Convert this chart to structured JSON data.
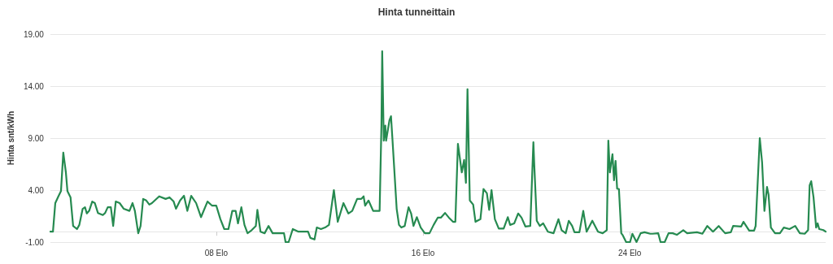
{
  "chart_data": {
    "type": "line",
    "title": "Hinta tunneittain",
    "ylabel": "Hinta snt/kWh",
    "xlim": [
      1.58,
      31.58
    ],
    "xticks": [
      {
        "value": 8,
        "label": "08 Elo"
      },
      {
        "value": 16,
        "label": "16 Elo"
      },
      {
        "value": 24,
        "label": "24 Elo"
      }
    ],
    "ylim": [
      -1,
      19
    ],
    "yticks": [
      {
        "value": -1,
        "label": "-1.00"
      },
      {
        "value": 4,
        "label": "4.00"
      },
      {
        "value": 9,
        "label": "9.00"
      },
      {
        "value": 14,
        "label": "14.00"
      },
      {
        "value": 19,
        "label": "19.00"
      }
    ],
    "grid": "y",
    "marker": "none",
    "line_style": "solid",
    "series": [
      {
        "color": "#268a50",
        "x": [
          1.58,
          1.68,
          1.77,
          1.89,
          1.99,
          2.08,
          2.18,
          2.24,
          2.36,
          2.46,
          2.61,
          2.7,
          2.83,
          2.92,
          2.99,
          3.08,
          3.2,
          3.3,
          3.42,
          3.61,
          3.7,
          3.8,
          3.92,
          4.01,
          4.11,
          4.26,
          4.42,
          4.64,
          4.76,
          4.85,
          4.98,
          5.07,
          5.17,
          5.29,
          5.41,
          5.51,
          5.79,
          6.04,
          6.19,
          6.35,
          6.44,
          6.6,
          6.75,
          6.88,
          7.03,
          7.22,
          7.41,
          7.66,
          7.84,
          8.0,
          8.16,
          8.31,
          8.47,
          8.62,
          8.75,
          8.84,
          8.97,
          9.09,
          9.21,
          9.37,
          9.53,
          9.59,
          9.71,
          9.87,
          10.02,
          10.18,
          10.46,
          10.62,
          10.68,
          10.8,
          10.96,
          11.18,
          11.55,
          11.64,
          11.8,
          11.89,
          12.05,
          12.21,
          12.36,
          12.55,
          12.7,
          12.92,
          13.11,
          13.26,
          13.45,
          13.61,
          13.7,
          13.76,
          13.89,
          14.07,
          14.23,
          14.32,
          14.39,
          14.42,
          14.48,
          14.54,
          14.57,
          14.7,
          14.76,
          14.82,
          14.98,
          15.07,
          15.16,
          15.29,
          15.44,
          15.54,
          15.63,
          15.76,
          15.91,
          16.07,
          16.25,
          16.41,
          16.57,
          16.69,
          16.85,
          17.0,
          17.16,
          17.25,
          17.35,
          17.5,
          17.59,
          17.66,
          17.72,
          17.81,
          17.94,
          18.03,
          18.22,
          18.34,
          18.47,
          18.56,
          18.65,
          18.78,
          18.93,
          19.12,
          19.28,
          19.37,
          19.53,
          19.68,
          19.81,
          19.96,
          20.15,
          20.27,
          20.3,
          20.4,
          20.52,
          20.65,
          20.83,
          21.05,
          21.24,
          21.36,
          21.52,
          21.64,
          21.77,
          21.86,
          22.05,
          22.2,
          22.33,
          22.55,
          22.77,
          22.95,
          23.11,
          23.17,
          23.23,
          23.33,
          23.39,
          23.45,
          23.51,
          23.58,
          23.67,
          23.73,
          23.86,
          24.01,
          24.1,
          24.26,
          24.42,
          24.57,
          24.79,
          24.88,
          25.1,
          25.19,
          25.35,
          25.5,
          25.66,
          25.82,
          26.07,
          26.22,
          26.6,
          26.81,
          27.0,
          27.22,
          27.44,
          27.69,
          27.91,
          28.0,
          28.31,
          28.4,
          28.62,
          28.81,
          28.87,
          29.03,
          29.12,
          29.21,
          29.31,
          29.37,
          29.46,
          29.62,
          29.81,
          29.96,
          30.18,
          30.4,
          30.58,
          30.77,
          30.9,
          30.96,
          31.02,
          31.11,
          31.21,
          31.27,
          31.33,
          31.49,
          31.58
        ],
        "values": [
          0.0,
          0.0,
          2.75,
          3.4,
          3.9,
          7.6,
          5.7,
          3.9,
          3.3,
          0.55,
          0.25,
          0.65,
          2.2,
          2.35,
          1.75,
          2.0,
          2.9,
          2.75,
          1.8,
          1.6,
          1.8,
          2.35,
          2.35,
          0.55,
          2.9,
          2.75,
          2.2,
          2.0,
          2.75,
          2.0,
          -0.15,
          0.55,
          3.15,
          3.0,
          2.6,
          2.75,
          3.4,
          3.15,
          3.3,
          2.9,
          2.2,
          3.0,
          3.45,
          2.0,
          3.45,
          2.75,
          1.4,
          2.9,
          2.5,
          2.5,
          1.2,
          0.25,
          0.25,
          2.0,
          2.0,
          0.8,
          2.35,
          0.65,
          -0.15,
          0.15,
          0.55,
          2.1,
          0.0,
          -0.15,
          0.55,
          -0.15,
          -0.15,
          -0.15,
          -1.0,
          -1.0,
          0.25,
          0.0,
          0.0,
          -0.6,
          -0.75,
          0.4,
          0.25,
          0.4,
          0.65,
          4.0,
          0.95,
          2.75,
          1.75,
          2.0,
          3.15,
          3.15,
          3.4,
          2.5,
          3.0,
          2.0,
          2.0,
          2.0,
          10.2,
          17.35,
          8.75,
          10.2,
          8.75,
          10.7,
          11.1,
          8.75,
          2.2,
          0.65,
          0.4,
          0.55,
          2.35,
          1.75,
          0.55,
          1.4,
          0.4,
          -0.15,
          -0.15,
          0.65,
          1.35,
          1.35,
          1.8,
          1.35,
          0.95,
          0.95,
          8.45,
          5.7,
          6.9,
          4.7,
          13.7,
          3.0,
          2.6,
          0.95,
          1.2,
          4.1,
          3.7,
          2.1,
          4.0,
          1.2,
          0.3,
          0.3,
          1.4,
          0.65,
          0.8,
          1.75,
          1.35,
          0.5,
          0.55,
          8.6,
          6.65,
          1.05,
          0.55,
          0.8,
          0.0,
          -0.15,
          1.2,
          0.15,
          -0.15,
          1.05,
          0.55,
          -0.05,
          -0.05,
          2.0,
          0.0,
          1.05,
          0.0,
          -0.15,
          0.15,
          8.75,
          5.7,
          7.45,
          4.95,
          6.8,
          4.15,
          4.1,
          -0.15,
          -0.35,
          -1.0,
          -1.0,
          -0.2,
          -1.0,
          -0.15,
          -0.05,
          -0.2,
          -0.2,
          -0.15,
          -1.0,
          -1.0,
          -0.15,
          -0.15,
          -0.3,
          0.15,
          -0.15,
          -0.05,
          -0.2,
          0.55,
          0.0,
          0.55,
          -0.15,
          -0.05,
          0.55,
          0.5,
          0.95,
          0.1,
          0.1,
          0.55,
          9.0,
          6.65,
          2.0,
          4.3,
          3.55,
          0.4,
          -0.15,
          -0.15,
          0.4,
          0.25,
          0.55,
          -0.15,
          -0.2,
          0.15,
          4.45,
          4.85,
          3.3,
          0.4,
          0.8,
          0.25,
          0.15,
          0.0
        ]
      }
    ]
  }
}
